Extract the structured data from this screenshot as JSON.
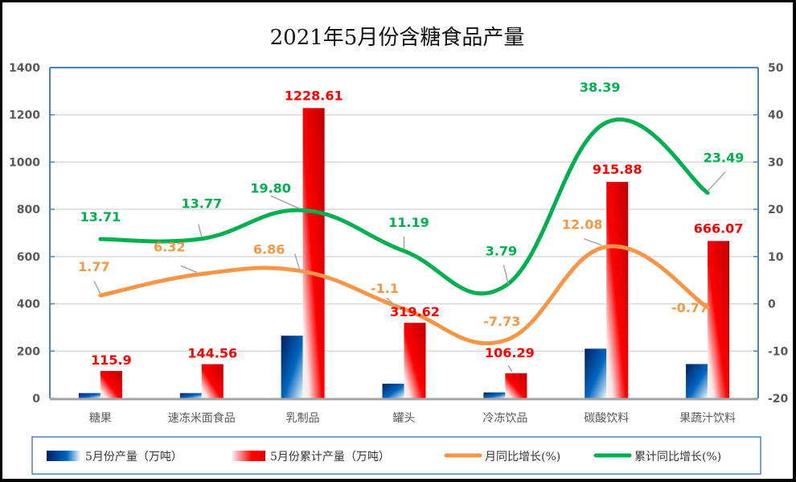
{
  "chart_data": {
    "type": "bar",
    "title": "2021年5月份含糖食品产量",
    "categories": [
      "糖果",
      "速冻米面食品",
      "乳制品",
      "罐头",
      "冷冻饮品",
      "碳酸饮料",
      "果蔬汁饮料"
    ],
    "y_left": {
      "range": [
        0,
        1400
      ],
      "ticks": [
        "0",
        "200",
        "400",
        "600",
        "800",
        "1000",
        "1200",
        "1400"
      ]
    },
    "y_right": {
      "range": [
        -20,
        50
      ],
      "ticks": [
        "-20",
        "-10",
        "0",
        "10",
        "20",
        "30",
        "40",
        "50"
      ]
    },
    "grid": true,
    "legend_position": "bottom",
    "series": [
      {
        "name": "5月份产量（万吨）",
        "type": "bar",
        "axis": "left",
        "color": "#0050a0",
        "values": [
          22,
          22,
          265,
          62,
          25,
          210,
          145
        ],
        "labels": []
      },
      {
        "name": "5月份累计产量（万吨）",
        "type": "bar",
        "axis": "left",
        "color": "#e00000",
        "values": [
          115.9,
          144.56,
          1228.61,
          319.62,
          106.29,
          915.88,
          666.07
        ],
        "labels": [
          "115.9",
          "144.56",
          "1228.61",
          "319.62",
          "106.29",
          "915.88",
          "666.07"
        ]
      },
      {
        "name": "月同比增长(%)",
        "type": "line",
        "axis": "right",
        "color": "#f79646",
        "values": [
          1.77,
          6.32,
          6.86,
          -1.1,
          -7.73,
          12.08,
          -0.77
        ],
        "labels": [
          "1.77",
          "6.32",
          "6.86",
          "-1.1",
          "-7.73",
          "12.08",
          "-0.77"
        ]
      },
      {
        "name": "累计同比增长(%)",
        "type": "line",
        "axis": "right",
        "color": "#00b050",
        "values": [
          13.71,
          13.77,
          19.8,
          11.19,
          3.79,
          38.39,
          23.49
        ],
        "labels": [
          "13.71",
          "13.77",
          "19.80",
          "11.19",
          "3.79",
          "38.39",
          "23.49"
        ]
      }
    ]
  }
}
